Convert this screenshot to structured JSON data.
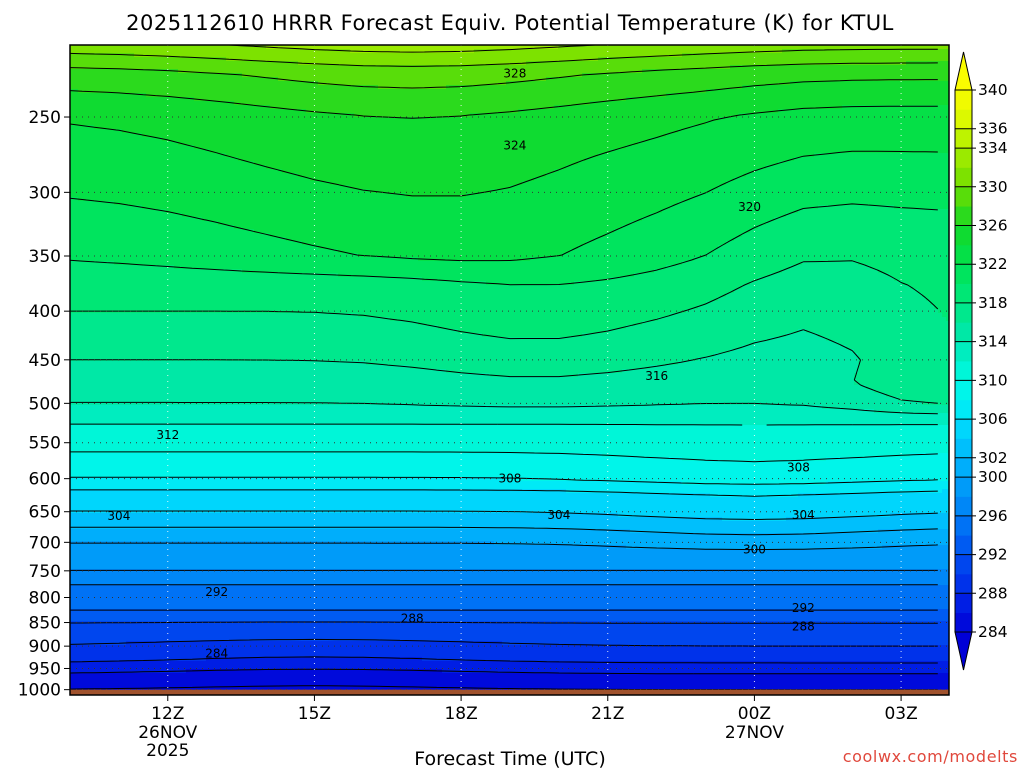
{
  "chart_data": {
    "type": "heatmap",
    "title": "2025112610 HRRR Forecast Equiv. Potential Temperature (K) for KTUL",
    "xlabel": "Forecast Time (UTC)",
    "ylabel": "",
    "credit": "coolwx.com/modelts",
    "x_ticks": [
      {
        "hour": 12,
        "label": "12Z",
        "sub1": "26NOV",
        "sub2": "2025"
      },
      {
        "hour": 15,
        "label": "15Z",
        "sub1": "",
        "sub2": ""
      },
      {
        "hour": 18,
        "label": "18Z",
        "sub1": "",
        "sub2": ""
      },
      {
        "hour": 21,
        "label": "21Z",
        "sub1": "",
        "sub2": ""
      },
      {
        "hour": 24,
        "label": "00Z",
        "sub1": "27NOV",
        "sub2": ""
      },
      {
        "hour": 27,
        "label": "03Z",
        "sub1": "",
        "sub2": ""
      }
    ],
    "xlim": [
      10,
      27.98
    ],
    "y_ticks": [
      1000,
      950,
      900,
      850,
      800,
      750,
      700,
      650,
      600,
      550,
      500,
      450,
      400,
      350,
      300,
      250
    ],
    "y_tick_labels": [
      "1000",
      "950",
      "900",
      "850",
      "800",
      "750",
      "700",
      "650",
      "600",
      "550",
      "500",
      "450",
      "400",
      "350",
      "300",
      "250"
    ],
    "ylim": [
      1013,
      210
    ],
    "surface_color": "#a0522d",
    "hours": [
      10,
      11,
      12,
      13,
      14,
      15,
      16,
      17,
      18,
      19,
      20,
      21,
      22,
      23,
      24,
      25,
      26,
      27,
      28
    ],
    "levels_hpa": [
      1013,
      1000,
      975,
      950,
      925,
      900,
      875,
      850,
      825,
      800,
      775,
      750,
      725,
      700,
      675,
      650,
      625,
      600,
      575,
      550,
      525,
      500,
      475,
      450,
      425,
      400,
      375,
      350,
      325,
      300,
      275,
      250,
      225,
      210
    ],
    "theta_e_at_10z": [
      283.5,
      284,
      285,
      287,
      289,
      290,
      291,
      292,
      294,
      295,
      296,
      298,
      299,
      300,
      302,
      304,
      305,
      308,
      309,
      311,
      312,
      314,
      315,
      316,
      317,
      318,
      319,
      320,
      321,
      322,
      323,
      324,
      327,
      331
    ],
    "colorbar": {
      "levels": [
        284,
        286,
        288,
        290,
        292,
        294,
        296,
        298,
        300,
        302,
        304,
        306,
        308,
        310,
        312,
        314,
        316,
        318,
        320,
        322,
        324,
        326,
        328,
        330,
        332,
        334,
        336,
        338,
        340
      ],
      "tick_labels": [
        "284",
        "288",
        "292",
        "296",
        "300",
        "302",
        "306",
        "310",
        "314",
        "318",
        "322",
        "326",
        "330",
        "334",
        "336",
        "340"
      ],
      "tick_values": [
        284,
        288,
        292,
        296,
        300,
        302,
        306,
        310,
        314,
        318,
        322,
        326,
        330,
        334,
        336,
        340
      ]
    },
    "contour_labels": [
      {
        "text": "328",
        "hour": 19.1,
        "p": 225
      },
      {
        "text": "324",
        "hour": 19.1,
        "p": 268
      },
      {
        "text": "320",
        "hour": 23.9,
        "p": 311
      },
      {
        "text": "316",
        "hour": 22.0,
        "p": 468
      },
      {
        "text": "312",
        "hour": 12.0,
        "p": 540
      },
      {
        "text": "308",
        "hour": 19.0,
        "p": 600
      },
      {
        "text": "308",
        "hour": 24.9,
        "p": 584
      },
      {
        "text": "304",
        "hour": 11.0,
        "p": 657
      },
      {
        "text": "304",
        "hour": 20.0,
        "p": 655
      },
      {
        "text": "304",
        "hour": 25.0,
        "p": 655
      },
      {
        "text": "300",
        "hour": 24.0,
        "p": 712
      },
      {
        "text": "292",
        "hour": 13.0,
        "p": 789
      },
      {
        "text": "292",
        "hour": 25.0,
        "p": 821
      },
      {
        "text": "288",
        "hour": 17.0,
        "p": 842
      },
      {
        "text": "288",
        "hour": 25.0,
        "p": 858
      },
      {
        "text": "284",
        "hour": 13.0,
        "p": 916
      }
    ]
  }
}
